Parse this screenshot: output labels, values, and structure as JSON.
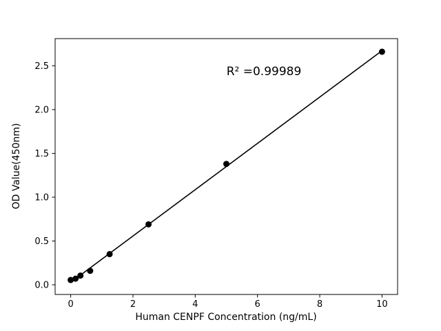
{
  "figure": {
    "background": "#ffffff",
    "foreground": "#000000"
  },
  "chart_data": {
    "type": "scatter",
    "title": "",
    "xlabel": "Human CENPF Concentration (ng/mL)",
    "ylabel": "OD Value(450nm)",
    "annotation": "R² =0.99989",
    "r_squared": 0.99989,
    "points": [
      {
        "x": 0,
        "y": 0.055
      },
      {
        "x": 0.156,
        "y": 0.07
      },
      {
        "x": 0.3125,
        "y": 0.105
      },
      {
        "x": 0.625,
        "y": 0.16
      },
      {
        "x": 1.25,
        "y": 0.35
      },
      {
        "x": 2.5,
        "y": 0.69
      },
      {
        "x": 5,
        "y": 1.38
      },
      {
        "x": 10,
        "y": 2.66
      }
    ],
    "fit": "linear-regression",
    "x_ticks": {
      "values": [
        0,
        2,
        4,
        6,
        8,
        10
      ],
      "labels": [
        "0",
        "2",
        "4",
        "6",
        "8",
        "10"
      ]
    },
    "y_ticks": {
      "values": [
        0.0,
        0.5,
        1.0,
        1.5,
        2.0,
        2.5
      ],
      "labels": [
        "0.0",
        "0.5",
        "1.0",
        "1.5",
        "2.0",
        "2.5"
      ]
    },
    "xlim": [
      -0.5,
      10.5
    ],
    "ylim": [
      -0.11,
      2.81
    ],
    "grid": false,
    "legend_position": "none",
    "marker": {
      "shape": "circle",
      "color": "#000000",
      "radius": 4.5
    },
    "line_color": "#000000",
    "axis_color": "#000000"
  }
}
